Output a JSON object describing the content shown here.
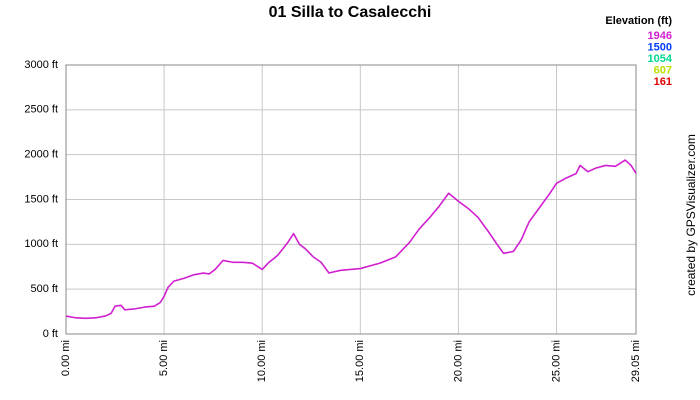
{
  "chart_data": {
    "type": "line",
    "title": "01 Silla to Casalecchi",
    "credit": "created by GPSVisualizer.com",
    "x": [
      0,
      0.5,
      1,
      1.5,
      2,
      2.3,
      2.5,
      2.8,
      3,
      3.5,
      4,
      4.5,
      4.8,
      5.0,
      5.2,
      5.5,
      6,
      6.5,
      7,
      7.3,
      7.6,
      8,
      8.5,
      9,
      9.5,
      10,
      10.3,
      10.8,
      11.3,
      11.6,
      11.9,
      12.2,
      12.6,
      13,
      13.4,
      14,
      15,
      16,
      16.8,
      17.5,
      18,
      18.5,
      19,
      19.5,
      20,
      20.5,
      21,
      21.5,
      22,
      22.3,
      22.8,
      23.2,
      23.6,
      24.1,
      24.6,
      25,
      25.5,
      26,
      26.2,
      26.6,
      27,
      27.5,
      28,
      28.5,
      28.8,
      29.05
    ],
    "values": [
      200,
      180,
      175,
      180,
      200,
      230,
      310,
      320,
      270,
      280,
      300,
      310,
      350,
      420,
      520,
      590,
      620,
      660,
      680,
      670,
      720,
      820,
      800,
      800,
      790,
      720,
      790,
      880,
      1020,
      1120,
      1000,
      950,
      860,
      800,
      680,
      710,
      730,
      790,
      860,
      1020,
      1170,
      1290,
      1420,
      1570,
      1480,
      1400,
      1300,
      1150,
      990,
      900,
      920,
      1050,
      1250,
      1400,
      1550,
      1680,
      1740,
      1790,
      1880,
      1810,
      1850,
      1880,
      1870,
      1940,
      1880,
      1790
    ],
    "xlim": [
      0,
      29.05
    ],
    "xticks": [
      {
        "value": 0,
        "label": "0.00 mi"
      },
      {
        "value": 5,
        "label": "5.00 mi"
      },
      {
        "value": 10,
        "label": "10.00 mi"
      },
      {
        "value": 15,
        "label": "15.00 mi"
      },
      {
        "value": 20,
        "label": "20.00 mi"
      },
      {
        "value": 25,
        "label": "25.00 mi"
      },
      {
        "value": 29.05,
        "label": "29.05 mi"
      }
    ],
    "ylim": [
      0,
      3000
    ],
    "yticks": [
      {
        "value": 0,
        "label": "0 ft"
      },
      {
        "value": 500,
        "label": "500 ft"
      },
      {
        "value": 1000,
        "label": "1000 ft"
      },
      {
        "value": 1500,
        "label": "1500 ft"
      },
      {
        "value": 2000,
        "label": "2000 ft"
      },
      {
        "value": 2500,
        "label": "2500 ft"
      },
      {
        "value": 3000,
        "label": "3000 ft"
      }
    ],
    "grid": true,
    "legend": {
      "title": "Elevation (ft)",
      "values": [
        1946,
        1500,
        1054,
        607,
        161
      ],
      "colors": [
        "#d020d0",
        "#0040ff",
        "#00d890",
        "#b8e000",
        "#e00000"
      ]
    }
  }
}
